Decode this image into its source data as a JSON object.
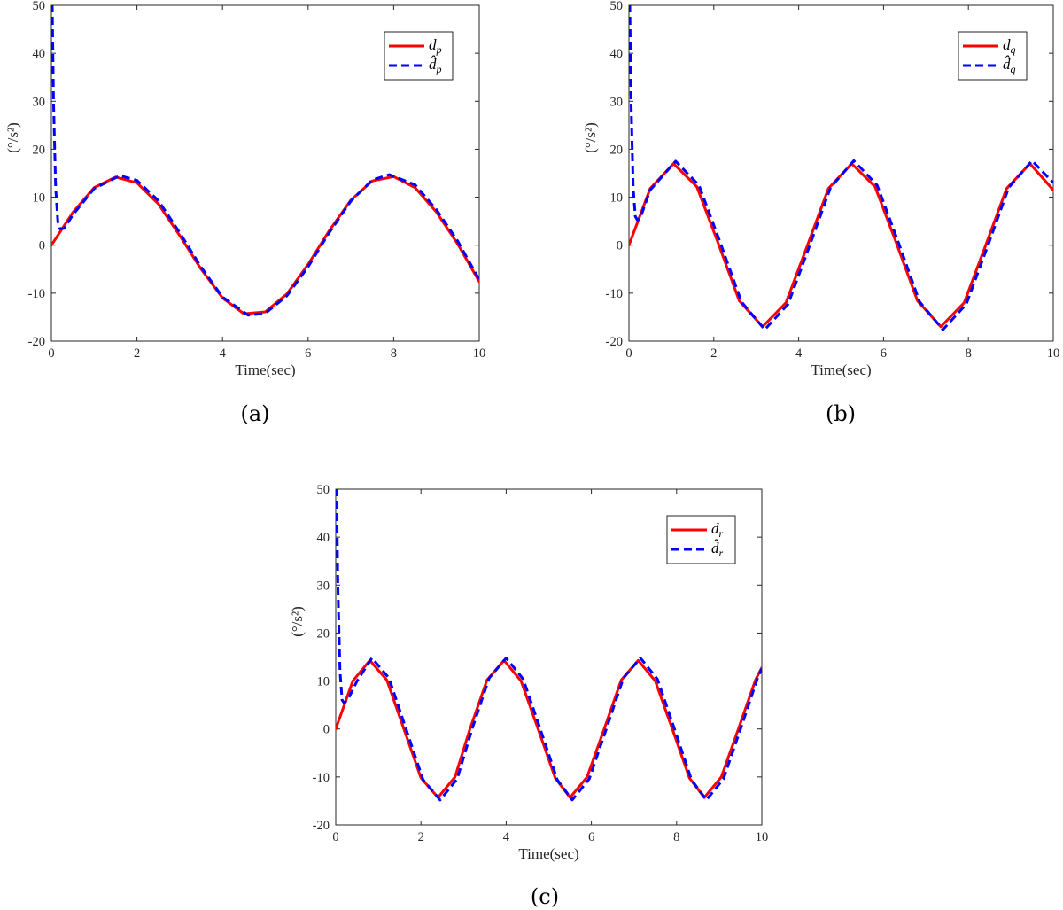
{
  "chart_data": [
    {
      "type": "line",
      "panel_label": "(a)",
      "xlabel": "Time(sec)",
      "ylabel": "(°/s²)",
      "xlim": [
        0,
        10
      ],
      "ylim": [
        -20,
        50
      ],
      "xticks": [
        "0",
        "2",
        "4",
        "6",
        "8",
        "10"
      ],
      "yticks": [
        "-20",
        "-10",
        "0",
        "10",
        "20",
        "30",
        "40",
        "50"
      ],
      "grid": false,
      "legend_position": "top-right",
      "series": [
        {
          "name": "d_p",
          "color": "#ff0000",
          "style": "solid",
          "x": [
            0,
            0.5,
            1,
            1.5,
            2,
            2.5,
            3,
            3.5,
            4,
            4.5,
            5,
            5.5,
            6,
            6.5,
            7,
            7.5,
            8,
            8.5,
            9,
            9.5,
            10
          ],
          "y": [
            0,
            6.8,
            12.0,
            14.2,
            13.0,
            8.6,
            2.0,
            -5.0,
            -11.0,
            -14.3,
            -13.9,
            -10.2,
            -4.0,
            3.1,
            9.4,
            13.4,
            14.3,
            12.0,
            6.9,
            0.2,
            -7.6
          ]
        },
        {
          "name": "d̂_p",
          "color": "#0000ff",
          "style": "dashed",
          "x": [
            0,
            0.02,
            0.05,
            0.1,
            0.15,
            0.2,
            0.3,
            0.5,
            1,
            1.6,
            2,
            2.5,
            3,
            3.5,
            4,
            4.6,
            5,
            5.5,
            6,
            6.5,
            7,
            7.5,
            7.9,
            8.5,
            9,
            9.5,
            10
          ],
          "y": [
            50,
            50,
            30,
            12,
            5,
            3.4,
            3.5,
            6.3,
            11.8,
            14.5,
            13.5,
            9.3,
            2.6,
            -4.6,
            -10.8,
            -14.6,
            -14.2,
            -10.6,
            -4.5,
            2.7,
            9.2,
            13.6,
            14.7,
            12.6,
            7.4,
            0.8,
            -7.2
          ]
        }
      ]
    },
    {
      "type": "line",
      "panel_label": "(b)",
      "xlabel": "Time(sec)",
      "ylabel": "(°/s²)",
      "xlim": [
        0,
        10
      ],
      "ylim": [
        -20,
        50
      ],
      "xticks": [
        "0",
        "2",
        "4",
        "6",
        "8",
        "10"
      ],
      "yticks": [
        "-20",
        "-10",
        "0",
        "10",
        "20",
        "30",
        "40",
        "50"
      ],
      "grid": false,
      "legend_position": "top-right",
      "series": [
        {
          "name": "d_q",
          "color": "#ff0000",
          "style": "solid",
          "x": [
            0,
            0.5,
            1.05,
            1.6,
            2.1,
            2.6,
            3.15,
            3.7,
            4.2,
            4.7,
            5.25,
            5.8,
            6.3,
            6.8,
            7.35,
            7.9,
            8.4,
            8.9,
            9.45,
            10
          ],
          "y": [
            0,
            11.8,
            17.0,
            12.2,
            0.5,
            -11.6,
            -17.0,
            -12.0,
            -0.2,
            11.8,
            17.0,
            12.2,
            0.5,
            -11.6,
            -17.0,
            -12.0,
            -0.2,
            11.8,
            17.0,
            11.5
          ]
        },
        {
          "name": "d̂_q",
          "color": "#0000ff",
          "style": "dashed",
          "x": [
            0,
            0.02,
            0.05,
            0.1,
            0.15,
            0.2,
            0.3,
            0.5,
            1.1,
            1.65,
            2.15,
            2.65,
            3.2,
            3.75,
            4.25,
            4.75,
            5.3,
            5.85,
            6.35,
            6.85,
            7.4,
            7.95,
            8.45,
            8.95,
            9.5,
            10
          ],
          "y": [
            50,
            50,
            30,
            12,
            6,
            5.2,
            6.5,
            11.5,
            17.5,
            12.5,
            0.6,
            -11.8,
            -17.6,
            -12.3,
            -0.3,
            12.0,
            17.6,
            12.5,
            0.6,
            -11.8,
            -17.6,
            -12.3,
            -0.3,
            12.0,
            17.6,
            13.0
          ]
        }
      ]
    },
    {
      "type": "line",
      "panel_label": "(c)",
      "xlabel": "Time(sec)",
      "ylabel": "(°/s²)",
      "xlim": [
        0,
        10
      ],
      "ylim": [
        -20,
        50
      ],
      "xticks": [
        "0",
        "2",
        "4",
        "6",
        "8",
        "10"
      ],
      "yticks": [
        "-20",
        "-10",
        "0",
        "10",
        "20",
        "30",
        "40",
        "50"
      ],
      "grid": false,
      "legend_position": "top-right",
      "series": [
        {
          "name": "d_r",
          "color": "#ff0000",
          "style": "solid",
          "x": [
            0,
            0.4,
            0.8,
            1.2,
            1.6,
            2.0,
            2.4,
            2.8,
            3.15,
            3.55,
            3.95,
            4.35,
            4.75,
            5.15,
            5.5,
            5.9,
            6.3,
            6.7,
            7.1,
            7.5,
            7.9,
            8.3,
            8.65,
            9.05,
            9.45,
            9.85,
            10
          ],
          "y": [
            0,
            10.0,
            14.3,
            10.2,
            0,
            -10.2,
            -14.3,
            -10.0,
            0,
            10.2,
            14.3,
            10.0,
            0,
            -10.2,
            -14.3,
            -10.0,
            0,
            10.2,
            14.3,
            10.0,
            0,
            -10.2,
            -14.3,
            -10.0,
            0,
            10.2,
            12.8
          ]
        },
        {
          "name": "d̂_r",
          "color": "#0000ff",
          "style": "dashed",
          "x": [
            0,
            0.02,
            0.05,
            0.1,
            0.15,
            0.2,
            0.3,
            0.5,
            0.85,
            1.25,
            1.65,
            2.05,
            2.45,
            2.85,
            3.2,
            3.6,
            4.0,
            4.4,
            4.8,
            5.2,
            5.55,
            5.95,
            6.35,
            6.75,
            7.15,
            7.55,
            7.95,
            8.35,
            8.7,
            9.1,
            9.5,
            9.9,
            10
          ],
          "y": [
            50,
            50,
            30,
            12,
            6,
            5.4,
            6.4,
            10.0,
            14.8,
            10.6,
            0,
            -10.6,
            -14.8,
            -10.4,
            0,
            10.6,
            14.8,
            10.4,
            0,
            -10.6,
            -14.8,
            -10.4,
            0,
            10.6,
            14.8,
            10.4,
            0,
            -10.6,
            -14.8,
            -10.4,
            0,
            10.6,
            12.6
          ]
        }
      ]
    }
  ]
}
